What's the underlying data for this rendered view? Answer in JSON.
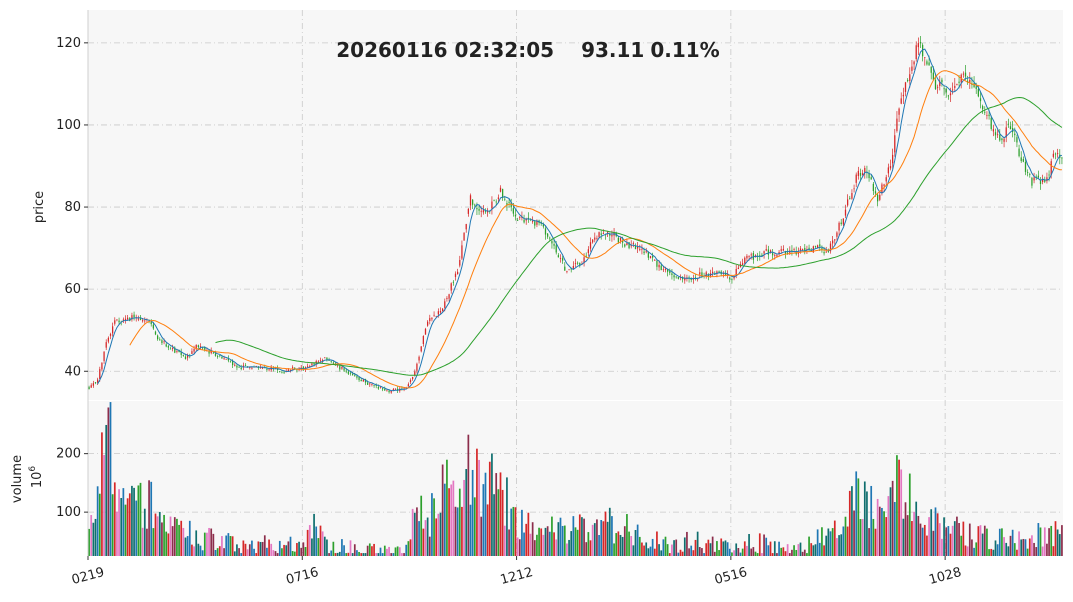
{
  "header": {
    "timestamp": "20260116 02:32:05",
    "price": "93.11",
    "change": "0.11%"
  },
  "colors": {
    "up": "#d62728",
    "down": "#2ca02c",
    "ma_short": "#1f77b4",
    "ma_mid": "#ff7f0e",
    "ma_long": "#2ca02c",
    "panel_bg": "#f7f7f7",
    "grid": "#c8c8c8",
    "volume_palette": [
      "#1f77b4",
      "#2ca02c",
      "#d62728",
      "#e377c2",
      "#0f6e6e",
      "#8c2d4b"
    ]
  },
  "chart_data": {
    "type": "candlestick",
    "grid": true,
    "price_axis": {
      "label": "price",
      "ylim": [
        33,
        128
      ],
      "ticks": [
        40,
        60,
        80,
        100,
        120
      ]
    },
    "volume_axis": {
      "label": "volume",
      "unit_exponent": "6",
      "ylim": [
        25,
        290
      ],
      "ticks": [
        100,
        200
      ]
    },
    "x_ticks": [
      {
        "index": 0,
        "label": "0219"
      },
      {
        "index": 100,
        "label": "0716"
      },
      {
        "index": 200,
        "label": "1212"
      },
      {
        "index": 300,
        "label": "0516"
      },
      {
        "index": 400,
        "label": "1028"
      }
    ],
    "bar_count": 455,
    "close_anchors": [
      [
        0,
        36
      ],
      [
        4,
        38
      ],
      [
        8,
        47
      ],
      [
        12,
        52
      ],
      [
        20,
        53
      ],
      [
        27,
        53
      ],
      [
        32,
        48
      ],
      [
        40,
        45
      ],
      [
        45,
        43
      ],
      [
        50,
        46
      ],
      [
        60,
        44
      ],
      [
        70,
        41
      ],
      [
        80,
        41
      ],
      [
        90,
        40
      ],
      [
        100,
        41
      ],
      [
        110,
        43
      ],
      [
        120,
        40
      ],
      [
        130,
        37
      ],
      [
        140,
        35
      ],
      [
        148,
        36
      ],
      [
        152,
        40
      ],
      [
        158,
        52
      ],
      [
        165,
        55
      ],
      [
        172,
        65
      ],
      [
        178,
        82
      ],
      [
        185,
        78
      ],
      [
        192,
        84
      ],
      [
        200,
        77
      ],
      [
        210,
        76
      ],
      [
        215,
        73
      ],
      [
        222,
        65
      ],
      [
        230,
        66
      ],
      [
        236,
        73
      ],
      [
        242,
        74
      ],
      [
        250,
        71
      ],
      [
        258,
        70
      ],
      [
        265,
        66
      ],
      [
        275,
        63
      ],
      [
        282,
        63
      ],
      [
        290,
        64
      ],
      [
        300,
        63
      ],
      [
        305,
        67
      ],
      [
        315,
        69
      ],
      [
        330,
        69
      ],
      [
        340,
        70
      ],
      [
        345,
        69
      ],
      [
        352,
        78
      ],
      [
        358,
        87
      ],
      [
        362,
        90
      ],
      [
        368,
        82
      ],
      [
        374,
        90
      ],
      [
        378,
        105
      ],
      [
        383,
        112
      ],
      [
        387,
        120
      ],
      [
        391,
        115
      ],
      [
        395,
        110
      ],
      [
        402,
        108
      ],
      [
        408,
        113
      ],
      [
        415,
        107
      ],
      [
        420,
        101
      ],
      [
        425,
        96
      ],
      [
        430,
        100
      ],
      [
        436,
        90
      ],
      [
        440,
        86
      ],
      [
        447,
        87
      ],
      [
        450,
        92
      ],
      [
        454,
        93
      ]
    ],
    "volume_anchors": [
      [
        0,
        70
      ],
      [
        4,
        110
      ],
      [
        8,
        270
      ],
      [
        12,
        170
      ],
      [
        18,
        120
      ],
      [
        25,
        110
      ],
      [
        30,
        120
      ],
      [
        36,
        70
      ],
      [
        45,
        70
      ],
      [
        52,
        50
      ],
      [
        60,
        55
      ],
      [
        70,
        45
      ],
      [
        80,
        45
      ],
      [
        90,
        42
      ],
      [
        100,
        55
      ],
      [
        104,
        80
      ],
      [
        110,
        45
      ],
      [
        120,
        38
      ],
      [
        130,
        35
      ],
      [
        140,
        32
      ],
      [
        148,
        35
      ],
      [
        153,
        110
      ],
      [
        158,
        90
      ],
      [
        162,
        100
      ],
      [
        168,
        160
      ],
      [
        175,
        175
      ],
      [
        182,
        150
      ],
      [
        190,
        145
      ],
      [
        196,
        110
      ],
      [
        203,
        75
      ],
      [
        210,
        80
      ],
      [
        220,
        75
      ],
      [
        230,
        70
      ],
      [
        240,
        78
      ],
      [
        250,
        75
      ],
      [
        260,
        62
      ],
      [
        270,
        45
      ],
      [
        280,
        50
      ],
      [
        290,
        45
      ],
      [
        300,
        35
      ],
      [
        305,
        38
      ],
      [
        310,
        50
      ],
      [
        320,
        40
      ],
      [
        330,
        38
      ],
      [
        338,
        45
      ],
      [
        344,
        65
      ],
      [
        348,
        80
      ],
      [
        352,
        110
      ],
      [
        358,
        140
      ],
      [
        365,
        110
      ],
      [
        372,
        130
      ],
      [
        378,
        150
      ],
      [
        384,
        120
      ],
      [
        390,
        100
      ],
      [
        396,
        85
      ],
      [
        402,
        70
      ],
      [
        410,
        65
      ],
      [
        420,
        55
      ],
      [
        430,
        50
      ],
      [
        440,
        60
      ],
      [
        448,
        65
      ],
      [
        454,
        75
      ]
    ],
    "ma_windows": [
      5,
      20,
      60
    ]
  }
}
